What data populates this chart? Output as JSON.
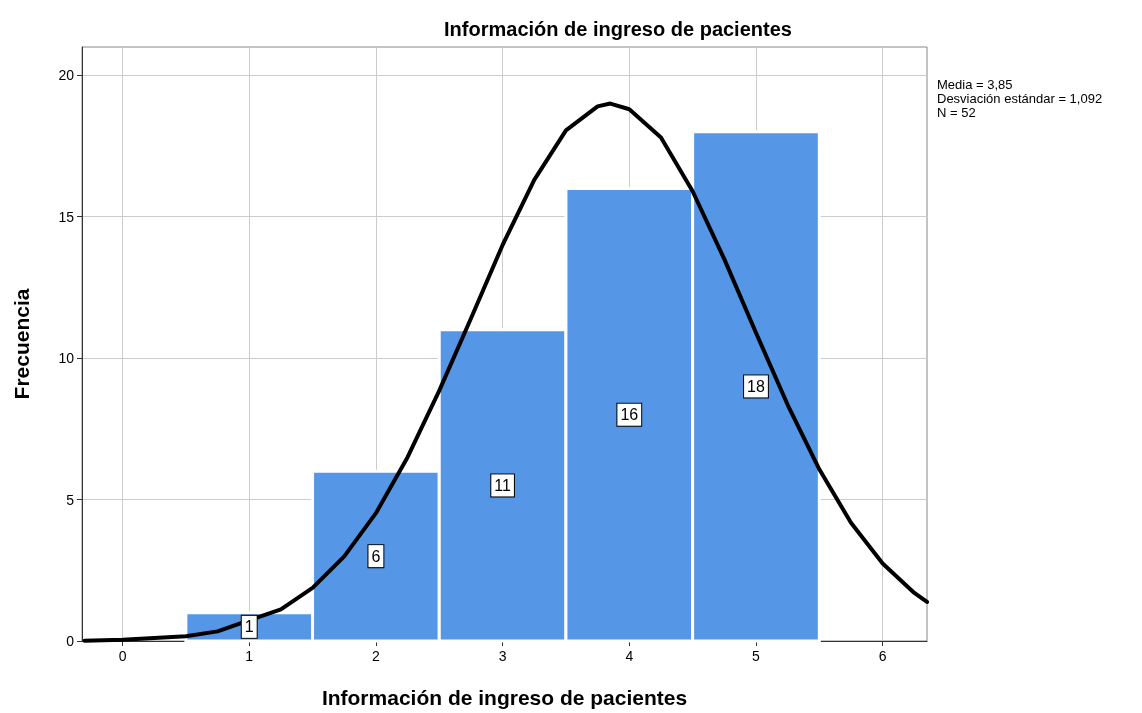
{
  "chart_data": {
    "type": "histogram",
    "title": "Información de ingreso de pacientes",
    "xlabel": "Información de ingreso de pacientes",
    "ylabel": "Frecuencia",
    "bins": [
      0.5,
      1.5,
      2.5,
      3.5,
      4.5,
      5.5
    ],
    "series": [
      {
        "color": "#5597e6",
        "values": [
          1,
          6,
          11,
          16,
          18
        ],
        "value_labels": [
          "1",
          "6",
          "11",
          "16",
          "18"
        ]
      },
      {
        "type": "line",
        "color": "#000000",
        "x": [
          -0.3,
          0,
          0.5,
          0.75,
          1.25,
          1.5,
          1.75,
          2,
          2.25,
          2.5,
          2.75,
          3,
          3.25,
          3.5,
          3.75,
          3.85,
          4,
          4.25,
          4.5,
          4.75,
          5,
          5.25,
          5.5,
          5.75,
          6,
          6.25,
          6.35
        ],
        "values": [
          0.01,
          0.04,
          0.17,
          0.34,
          1.12,
          1.88,
          2.99,
          4.52,
          6.5,
          8.85,
          11.4,
          14.0,
          16.3,
          18.05,
          18.9,
          19.0,
          18.8,
          17.8,
          15.9,
          13.5,
          10.9,
          8.35,
          6.07,
          4.18,
          2.74,
          1.7,
          1.38
        ]
      }
    ],
    "marker": "none",
    "line_style": "solid",
    "grid": true,
    "xlim": [
      -0.32,
      6.35
    ],
    "xticks": [
      0,
      1,
      2,
      3,
      4,
      5,
      6
    ],
    "ylim": [
      0,
      21
    ],
    "yticks": [
      0,
      5,
      10,
      15,
      20
    ],
    "annotations": [
      "Media = 3,85",
      "Desviación estándar = 1,092",
      "N = 52"
    ]
  }
}
